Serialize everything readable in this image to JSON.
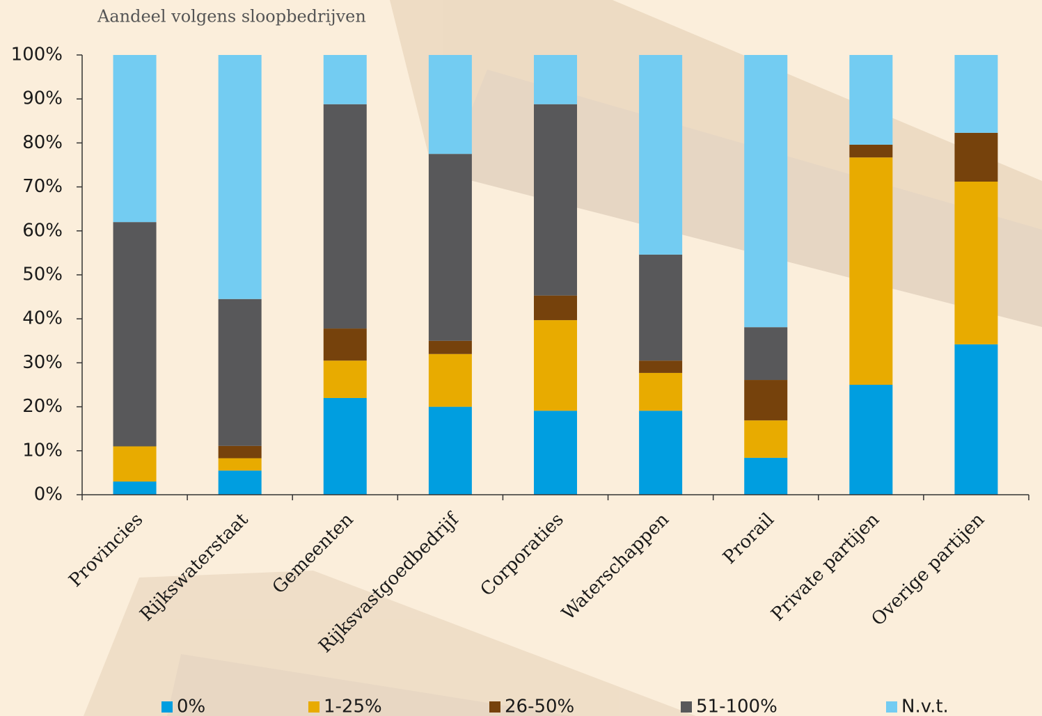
{
  "chart_data": {
    "type": "stacked_bar",
    "title": "Aandeel volgens sloopbedrijven",
    "categories": [
      "Provincies",
      "Rijkswaterstaat",
      "Gemeenten",
      "Rijksvastgoedbedrijf",
      "Corporaties",
      "Waterschappen",
      "Prorail",
      "Private partijen",
      "Overige partijen"
    ],
    "series": [
      {
        "name": "0%",
        "color": "#009ee0",
        "values": [
          3,
          5.5,
          22,
          20,
          19.1,
          19.1,
          8.4,
          25,
          34.2
        ]
      },
      {
        "name": "1-25%",
        "color": "#e8ab00",
        "values": [
          8,
          2.8,
          8.5,
          12,
          20.6,
          8.6,
          8.5,
          51.7,
          37
        ]
      },
      {
        "name": "26-50%",
        "color": "#76420c",
        "values": [
          0,
          2.8,
          7.3,
          3,
          5.6,
          2.8,
          9.2,
          2.9,
          11.1
        ]
      },
      {
        "name": "51-100%",
        "color": "#58585a",
        "values": [
          51,
          33.4,
          51,
          42.5,
          43.5,
          24.1,
          12,
          0,
          0
        ]
      },
      {
        "name": "N.v.t.",
        "color": "#73ccf2",
        "values": [
          38,
          55.5,
          11.2,
          22.5,
          11.2,
          45.4,
          61.9,
          20.4,
          17.7
        ]
      }
    ],
    "ylim": [
      0,
      100
    ],
    "yticks": [
      {
        "value": 0,
        "label": "0%"
      },
      {
        "value": 10,
        "label": "10%"
      },
      {
        "value": 20,
        "label": "20%"
      },
      {
        "value": 30,
        "label": "30%"
      },
      {
        "value": 40,
        "label": "40%"
      },
      {
        "value": 50,
        "label": "50%"
      },
      {
        "value": 60,
        "label": "60%"
      },
      {
        "value": 70,
        "label": "70%"
      },
      {
        "value": 80,
        "label": "80%"
      },
      {
        "value": 90,
        "label": "90%"
      },
      {
        "value": 100,
        "label": "100%"
      }
    ],
    "legend": "bottom"
  }
}
